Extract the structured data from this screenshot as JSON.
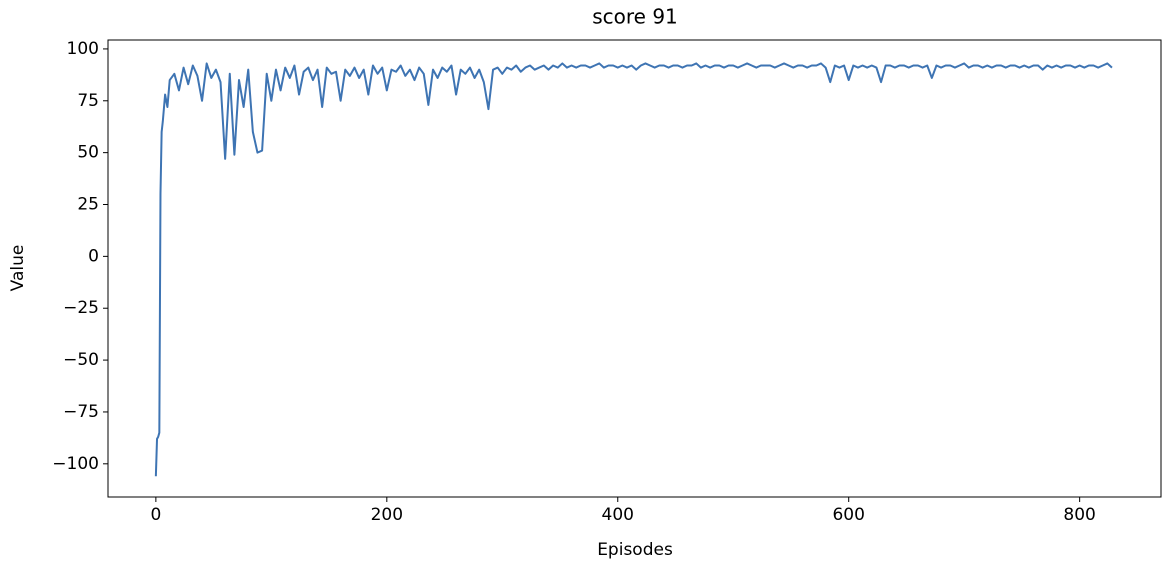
{
  "chart_data": {
    "type": "line",
    "title": "score 91",
    "xlabel": "Episodes",
    "ylabel": "Value",
    "x": [
      0,
      1,
      2,
      3,
      4,
      5,
      6,
      8,
      10,
      12,
      16,
      20,
      24,
      28,
      32,
      36,
      40,
      44,
      48,
      52,
      56,
      60,
      64,
      68,
      72,
      76,
      80,
      84,
      88,
      92,
      96,
      100,
      104,
      108,
      112,
      116,
      120,
      124,
      128,
      132,
      136,
      140,
      144,
      148,
      152,
      156,
      160,
      164,
      168,
      172,
      176,
      180,
      184,
      188,
      192,
      196,
      200,
      204,
      208,
      212,
      216,
      220,
      224,
      228,
      232,
      236,
      240,
      244,
      248,
      252,
      256,
      260,
      264,
      268,
      272,
      276,
      280,
      284,
      288,
      292,
      296,
      300,
      304,
      308,
      312,
      316,
      320,
      324,
      328,
      332,
      336,
      340,
      344,
      348,
      352,
      356,
      360,
      364,
      368,
      372,
      376,
      380,
      384,
      388,
      392,
      396,
      400,
      404,
      408,
      412,
      416,
      420,
      424,
      428,
      432,
      436,
      440,
      444,
      448,
      452,
      456,
      460,
      464,
      468,
      472,
      476,
      480,
      484,
      488,
      492,
      496,
      500,
      504,
      508,
      512,
      516,
      520,
      524,
      528,
      532,
      536,
      540,
      544,
      548,
      552,
      556,
      560,
      564,
      568,
      572,
      576,
      580,
      584,
      588,
      592,
      596,
      600,
      604,
      608,
      612,
      616,
      620,
      624,
      628,
      632,
      636,
      640,
      644,
      648,
      652,
      656,
      660,
      664,
      668,
      672,
      676,
      680,
      684,
      688,
      692,
      696,
      700,
      704,
      708,
      712,
      716,
      720,
      724,
      728,
      732,
      736,
      740,
      744,
      748,
      752,
      756,
      760,
      764,
      768,
      772,
      776,
      780,
      784,
      788,
      792,
      796,
      800,
      804,
      808,
      812,
      816,
      820,
      824,
      828
    ],
    "series": [
      {
        "name": "score",
        "color": "#3e74b3",
        "values": [
          -106,
          -88,
          -87,
          -85,
          30,
          60,
          65,
          78,
          72,
          85,
          88,
          80,
          91,
          83,
          92,
          87,
          75,
          93,
          86,
          90,
          84,
          47,
          88,
          49,
          85,
          72,
          90,
          60,
          50,
          51,
          88,
          75,
          90,
          80,
          91,
          86,
          92,
          78,
          89,
          91,
          85,
          90,
          72,
          91,
          88,
          89,
          75,
          90,
          87,
          91,
          86,
          90,
          78,
          92,
          88,
          91,
          80,
          90,
          89,
          92,
          87,
          90,
          85,
          91,
          88,
          73,
          90,
          86,
          91,
          89,
          92,
          78,
          90,
          88,
          91,
          86,
          90,
          84,
          71,
          90,
          91,
          88,
          91,
          90,
          92,
          89,
          91,
          92,
          90,
          91,
          92,
          90,
          92,
          91,
          93,
          91,
          92,
          91,
          92,
          92,
          91,
          92,
          93,
          91,
          92,
          92,
          91,
          92,
          91,
          92,
          90,
          92,
          93,
          92,
          91,
          92,
          92,
          91,
          92,
          92,
          91,
          92,
          92,
          93,
          91,
          92,
          91,
          92,
          92,
          91,
          92,
          92,
          91,
          92,
          93,
          92,
          91,
          92,
          92,
          92,
          91,
          92,
          93,
          92,
          91,
          92,
          92,
          91,
          92,
          92,
          93,
          91,
          84,
          92,
          91,
          92,
          85,
          92,
          91,
          92,
          91,
          92,
          91,
          84,
          92,
          92,
          91,
          92,
          92,
          91,
          92,
          92,
          91,
          92,
          86,
          92,
          91,
          92,
          92,
          91,
          92,
          93,
          91,
          92,
          92,
          91,
          92,
          91,
          92,
          92,
          91,
          92,
          92,
          91,
          92,
          91,
          92,
          92,
          90,
          92,
          91,
          92,
          91,
          92,
          92,
          91,
          92,
          91,
          92,
          92,
          91,
          92,
          93,
          91
        ]
      }
    ],
    "xlim": [
      -41.45,
      870.45
    ],
    "ylim": [
      -116,
      104.3
    ],
    "xticks": [
      0,
      200,
      400,
      600,
      800
    ],
    "yticks": [
      {
        "value": -100,
        "label": "−100"
      },
      {
        "value": -75,
        "label": "−75"
      },
      {
        "value": -50,
        "label": "−50"
      },
      {
        "value": -25,
        "label": "−25"
      },
      0,
      25,
      50,
      75,
      100
    ]
  }
}
